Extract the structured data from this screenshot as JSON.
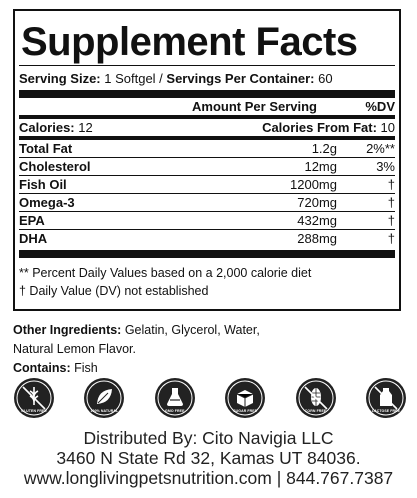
{
  "title": "Supplement Facts",
  "serving": {
    "size_label": "Serving Size:",
    "size_value": " 1 Softgel / ",
    "per_container_label": "Servings Per Container:",
    "per_container_value": " 60"
  },
  "header": {
    "amount": "Amount Per Serving",
    "dv": "%DV"
  },
  "calories": {
    "label": "Calories:",
    "value": " 12",
    "from_fat_label": "Calories From Fat:",
    "from_fat_value": " 10"
  },
  "rows": [
    {
      "name": "Total Fat",
      "amount": "1.2g",
      "dv": "2%**"
    },
    {
      "name": "Cholesterol",
      "amount": "12mg",
      "dv": "3%"
    },
    {
      "name": "Fish Oil",
      "amount": "1200mg",
      "dv": "†"
    },
    {
      "name": "Omega-3",
      "amount": "720mg",
      "dv": "†"
    },
    {
      "name": "EPA",
      "amount": "432mg",
      "dv": "†"
    },
    {
      "name": "DHA",
      "amount": "288mg",
      "dv": "†"
    }
  ],
  "footnotes": [
    "** Percent Daily Values based on a 2,000 calorie diet",
    "† Daily Value (DV) not established"
  ],
  "ingredients": {
    "label": "Other Ingredients:",
    "line1": " Gelatin, Glycerol, Water,",
    "line2": "Natural Lemon Flavor.",
    "contains_label": "Contains:",
    "contains_value": " Fish"
  },
  "badges": [
    {
      "icon": "gluten-free-icon",
      "label": "GLUTEN FREE"
    },
    {
      "icon": "all-natural-icon",
      "label": "100% NATURAL"
    },
    {
      "icon": "gmo-free-icon",
      "label": "GMO FREE"
    },
    {
      "icon": "sugar-free-icon",
      "label": "SUGAR FREE"
    },
    {
      "icon": "corn-free-icon",
      "label": "CORN FREE"
    },
    {
      "icon": "lactose-free-icon",
      "label": "LACTOSE FREE"
    }
  ],
  "distributor": {
    "line1": "Distributed By: Cito Navigia LLC",
    "line2": "3460 N State Rd 32, Kamas UT 84036.",
    "line3": "www.longlivingpetsnutrition.com | 844.767.7387"
  }
}
